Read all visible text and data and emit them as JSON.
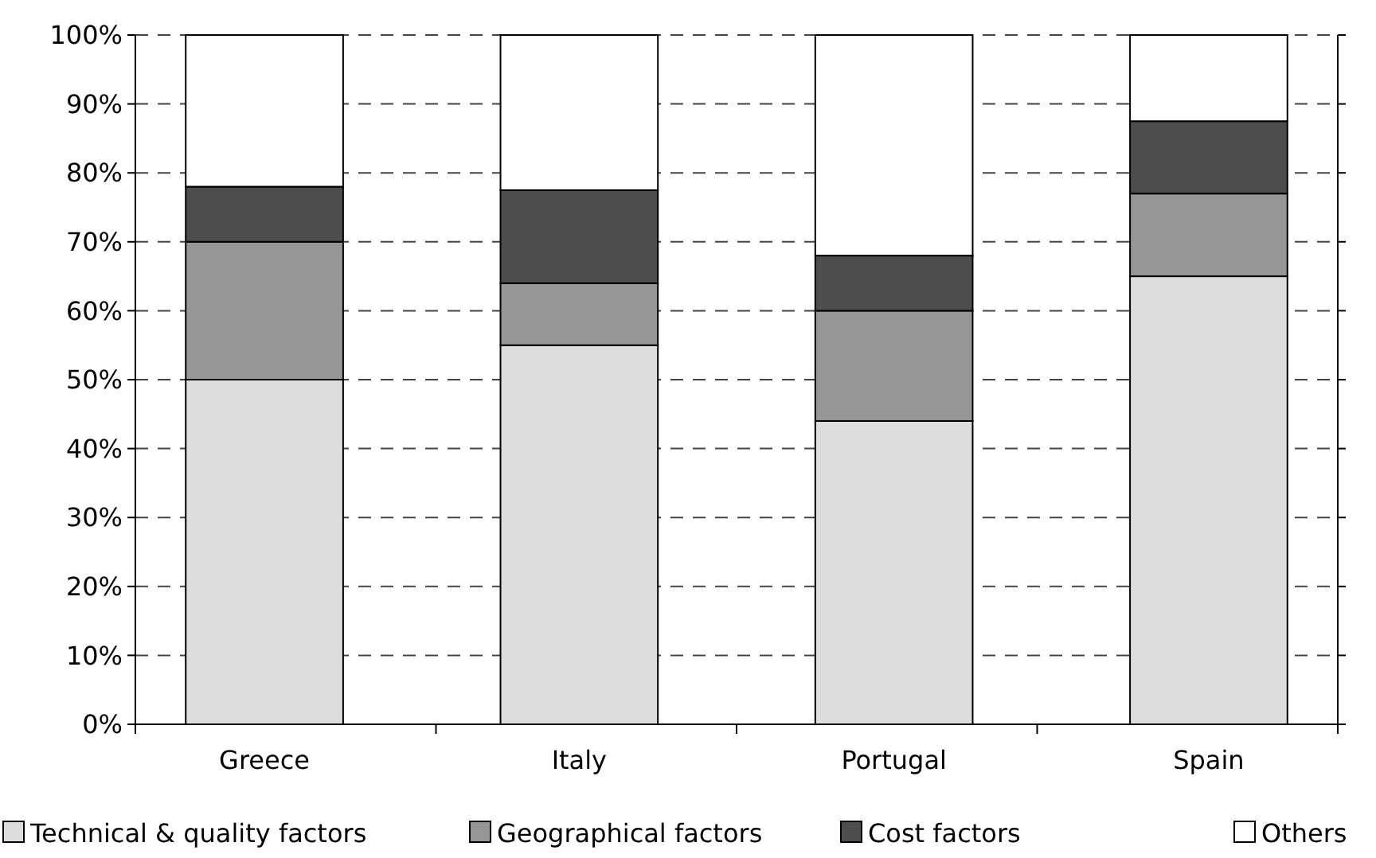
{
  "chart_data": {
    "type": "bar",
    "stacked": true,
    "categories": [
      "Greece",
      "Italy",
      "Portugal",
      "Spain"
    ],
    "series": [
      {
        "name": "Technical & quality factors",
        "color": "#dddddd",
        "values": [
          50,
          55,
          44,
          65
        ]
      },
      {
        "name": "Geographical factors",
        "color": "#969696",
        "values": [
          20,
          9,
          16,
          12
        ]
      },
      {
        "name": "Cost factors",
        "color": "#4d4d4d",
        "values": [
          8,
          13.5,
          8,
          10.5
        ]
      },
      {
        "name": "Others",
        "color": "#ffffff",
        "values": [
          22,
          22.5,
          32,
          12.5
        ]
      }
    ],
    "ylim": [
      0,
      100
    ],
    "yticks": [
      {
        "value": 0,
        "label": "0%"
      },
      {
        "value": 10,
        "label": "10%"
      },
      {
        "value": 20,
        "label": "20%"
      },
      {
        "value": 30,
        "label": "30%"
      },
      {
        "value": 40,
        "label": "40%"
      },
      {
        "value": 50,
        "label": "50%"
      },
      {
        "value": 60,
        "label": "60%"
      },
      {
        "value": 70,
        "label": "70%"
      },
      {
        "value": 80,
        "label": "80%"
      },
      {
        "value": 90,
        "label": "90%"
      },
      {
        "value": 100,
        "label": "100%"
      }
    ],
    "grid": "y",
    "legend": "bottom"
  }
}
